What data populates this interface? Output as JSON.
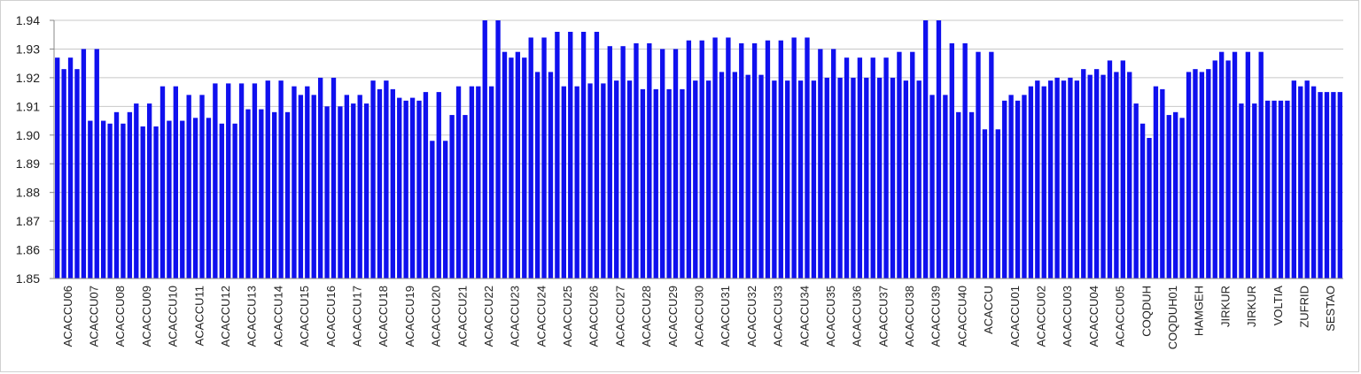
{
  "chart_data": {
    "type": "bar",
    "title": "",
    "xlabel": "",
    "ylabel": "",
    "ylim": [
      1.85,
      1.94
    ],
    "yticks": [
      "1.85",
      "1.86",
      "1.87",
      "1.88",
      "1.89",
      "1.90",
      "1.91",
      "1.92",
      "1.93",
      "1.94"
    ],
    "grid": true,
    "legend": "none",
    "bar_color": "#1010ee",
    "grid_color": "#c8c8c8",
    "groups": [
      {
        "label": "ACACCU06",
        "values": [
          1.927,
          1.923,
          1.927,
          1.923
        ]
      },
      {
        "label": "ACACCU07",
        "values": [
          1.93,
          1.905,
          1.93,
          1.905
        ]
      },
      {
        "label": "ACACCU08",
        "values": [
          1.904,
          1.908,
          1.904,
          1.908
        ]
      },
      {
        "label": "ACACCU09",
        "values": [
          1.911,
          1.903,
          1.911,
          1.903
        ]
      },
      {
        "label": "ACACCU10",
        "values": [
          1.917,
          1.905,
          1.917,
          1.905
        ]
      },
      {
        "label": "ACACCU11",
        "values": [
          1.914,
          1.906,
          1.914,
          1.906
        ]
      },
      {
        "label": "ACACCU12",
        "values": [
          1.918,
          1.904,
          1.918,
          1.904
        ]
      },
      {
        "label": "ACACCU13",
        "values": [
          1.918,
          1.909,
          1.918,
          1.909
        ]
      },
      {
        "label": "ACACCU14",
        "values": [
          1.919,
          1.908,
          1.919,
          1.908
        ]
      },
      {
        "label": "ACACCU15",
        "values": [
          1.917,
          1.914,
          1.917,
          1.914
        ]
      },
      {
        "label": "ACACCU16",
        "values": [
          1.92,
          1.91,
          1.92,
          1.91
        ]
      },
      {
        "label": "ACACCU17",
        "values": [
          1.914,
          1.911,
          1.914,
          1.911
        ]
      },
      {
        "label": "ACACCU18",
        "values": [
          1.919,
          1.916,
          1.919,
          1.916
        ]
      },
      {
        "label": "ACACCU19",
        "values": [
          1.913,
          1.912,
          1.913,
          1.912
        ]
      },
      {
        "label": "ACACCU20",
        "values": [
          1.915,
          1.898,
          1.915,
          1.898
        ]
      },
      {
        "label": "ACACCU21",
        "values": [
          1.907,
          1.917,
          1.907,
          1.917
        ]
      },
      {
        "label": "ACACCU22",
        "values": [
          1.917,
          1.94,
          1.917,
          1.94
        ]
      },
      {
        "label": "ACACCU23",
        "values": [
          1.929,
          1.927,
          1.929,
          1.927
        ]
      },
      {
        "label": "ACACCU24",
        "values": [
          1.934,
          1.922,
          1.934,
          1.922
        ]
      },
      {
        "label": "ACACCU25",
        "values": [
          1.936,
          1.917,
          1.936,
          1.917
        ]
      },
      {
        "label": "ACACCU26",
        "values": [
          1.936,
          1.918,
          1.936,
          1.918
        ]
      },
      {
        "label": "ACACCU27",
        "values": [
          1.931,
          1.919,
          1.931,
          1.919
        ]
      },
      {
        "label": "ACACCU28",
        "values": [
          1.932,
          1.916,
          1.932,
          1.916
        ]
      },
      {
        "label": "ACACCU29",
        "values": [
          1.93,
          1.916,
          1.93,
          1.916
        ]
      },
      {
        "label": "ACACCU30",
        "values": [
          1.933,
          1.919,
          1.933,
          1.919
        ]
      },
      {
        "label": "ACACCU31",
        "values": [
          1.934,
          1.922,
          1.934,
          1.922
        ]
      },
      {
        "label": "ACACCU32",
        "values": [
          1.932,
          1.921,
          1.932,
          1.921
        ]
      },
      {
        "label": "ACACCU33",
        "values": [
          1.933,
          1.919,
          1.933,
          1.919
        ]
      },
      {
        "label": "ACACCU34",
        "values": [
          1.934,
          1.919,
          1.934,
          1.919
        ]
      },
      {
        "label": "ACACCU35",
        "values": [
          1.93,
          1.92,
          1.93,
          1.92
        ]
      },
      {
        "label": "ACACCU36",
        "values": [
          1.927,
          1.92,
          1.927,
          1.92
        ]
      },
      {
        "label": "ACACCU37",
        "values": [
          1.927,
          1.92,
          1.927,
          1.92
        ]
      },
      {
        "label": "ACACCU38",
        "values": [
          1.929,
          1.919,
          1.929,
          1.919
        ]
      },
      {
        "label": "ACACCU39",
        "values": [
          1.94,
          1.914,
          1.94,
          1.914
        ]
      },
      {
        "label": "ACACCU40",
        "values": [
          1.932,
          1.908,
          1.932,
          1.908
        ]
      },
      {
        "label": "ACACCU",
        "values": [
          1.929,
          1.902,
          1.929,
          1.902
        ]
      },
      {
        "label": "ACACCU01",
        "values": [
          1.912,
          1.914,
          1.912,
          1.914
        ]
      },
      {
        "label": "ACACCU02",
        "values": [
          1.917,
          1.919,
          1.917,
          1.919
        ]
      },
      {
        "label": "ACACCU03",
        "values": [
          1.92,
          1.919,
          1.92,
          1.919
        ]
      },
      {
        "label": "ACACCU04",
        "values": [
          1.923,
          1.921,
          1.923,
          1.921
        ]
      },
      {
        "label": "ACACCU05",
        "values": [
          1.926,
          1.922,
          1.926,
          1.922
        ]
      },
      {
        "label": "COQDUH",
        "values": [
          1.911,
          1.904,
          1.899,
          1.917
        ]
      },
      {
        "label": "COQDUH01",
        "values": [
          1.916,
          1.907,
          1.908,
          1.906
        ]
      },
      {
        "label": "HAMGEH",
        "values": [
          1.922,
          1.923,
          1.922,
          1.923
        ]
      },
      {
        "label": "JIRKUR",
        "values": [
          1.926,
          1.929,
          1.926,
          1.929
        ]
      },
      {
        "label": "JIRKUR",
        "values": [
          1.911,
          1.929,
          1.911,
          1.929
        ]
      },
      {
        "label": "VOLTIA",
        "values": [
          1.912,
          1.912,
          1.912,
          1.912
        ]
      },
      {
        "label": "ZUFRID",
        "values": [
          1.919,
          1.917,
          1.919,
          1.917
        ]
      },
      {
        "label": "SESTAO",
        "values": [
          1.915,
          1.915,
          1.915,
          1.915
        ]
      }
    ]
  }
}
